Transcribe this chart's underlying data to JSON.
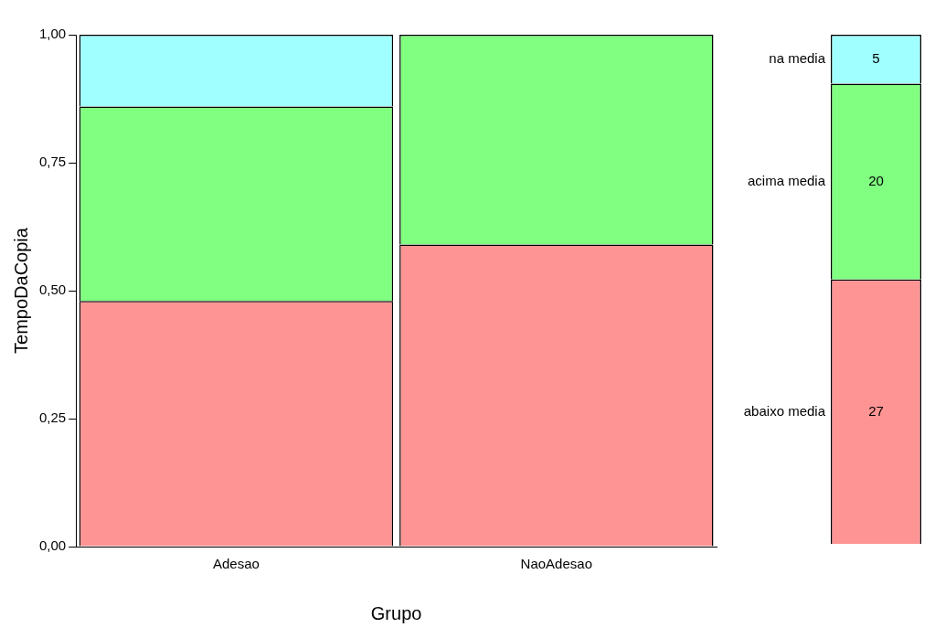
{
  "chart_data": [
    {
      "type": "bar",
      "stacked": true,
      "xlabel": "Grupo",
      "ylabel": "TempoDaCopia",
      "categories": [
        "Adesao",
        "NaoAdesao"
      ],
      "series": [
        {
          "color": "#ff9494",
          "values": [
            0.48,
            0.59
          ]
        },
        {
          "color": "#80ff80",
          "values": [
            0.38,
            0.41
          ]
        },
        {
          "color": "#a0ffff",
          "values": [
            0.14,
            0
          ]
        }
      ],
      "ylim": [
        0,
        1
      ],
      "yticks": [
        {
          "value": 0,
          "label": "0,00"
        },
        {
          "value": 0.25,
          "label": "0,25"
        },
        {
          "value": 0.5,
          "label": "0,50"
        },
        {
          "value": 0.75,
          "label": "0,75"
        },
        {
          "value": 1,
          "label": "1,00"
        }
      ],
      "grid": false
    },
    {
      "type": "bar",
      "stacked": true,
      "categories": [
        null
      ],
      "data_labels": true,
      "series": [
        {
          "name": "abaixo media",
          "color": "#ff9494",
          "values": [
            27
          ]
        },
        {
          "name": "acima media",
          "color": "#80ff80",
          "values": [
            20
          ]
        },
        {
          "name": "na media",
          "color": "#a0ffff",
          "values": [
            5
          ]
        }
      ]
    }
  ]
}
